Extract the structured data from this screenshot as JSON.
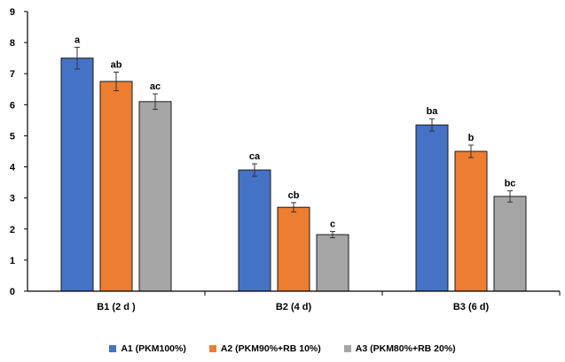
{
  "chart_data": {
    "type": "bar",
    "title": "",
    "xlabel": "",
    "ylabel": "",
    "ylim": [
      0,
      9
    ],
    "yticks": [
      0,
      1,
      2,
      3,
      4,
      5,
      6,
      7,
      8,
      9
    ],
    "grid": false,
    "legend_position": "bottom",
    "error_bars": true,
    "categories": [
      "B1 (2 d )",
      "B2 (4 d)",
      "B3 (6 d)"
    ],
    "series": [
      {
        "name": "A1 (PKM100%)",
        "color": "#4472C4",
        "values": [
          7.5,
          3.9,
          5.35
        ],
        "errors": [
          0.35,
          0.2,
          0.2
        ],
        "labels": [
          "a",
          "ca",
          "ba"
        ]
      },
      {
        "name": "A2 (PKM90%+RB 10%)",
        "color": "#ED7D31",
        "values": [
          6.75,
          2.7,
          4.5
        ],
        "errors": [
          0.3,
          0.15,
          0.2
        ],
        "labels": [
          "ab",
          "cb",
          "b"
        ]
      },
      {
        "name": "A3 (PKM80%+RB 20%)",
        "color": "#A5A5A5",
        "values": [
          6.1,
          1.82,
          3.05
        ],
        "errors": [
          0.25,
          0.1,
          0.18
        ],
        "labels": [
          "ac",
          "c",
          "bc"
        ]
      }
    ]
  }
}
